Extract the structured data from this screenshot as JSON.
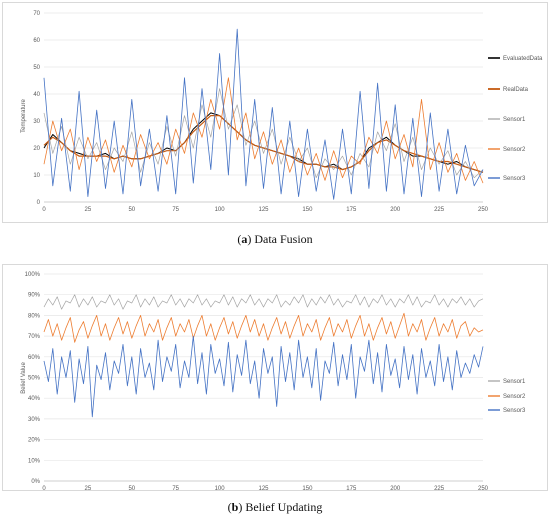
{
  "captions": {
    "a_label": "a",
    "a_text": " Data Fusion",
    "b_label": "b",
    "b_text": " Belief Updating"
  },
  "chart_data": [
    {
      "id": "a",
      "type": "line",
      "ylabel": "Temperature",
      "xlim": [
        0,
        250
      ],
      "ylim": [
        0,
        70
      ],
      "xticks": [
        0,
        25,
        50,
        75,
        100,
        125,
        150,
        175,
        200,
        225,
        250
      ],
      "yticks": [
        0,
        10,
        20,
        30,
        40,
        50,
        60,
        70
      ],
      "xtick_labels": [
        "0",
        "25",
        "50",
        "75",
        "100",
        "125",
        "150",
        "175",
        "200",
        "225",
        "250"
      ],
      "ytick_labels": [
        "0",
        "10",
        "20",
        "30",
        "40",
        "50",
        "60",
        "70"
      ],
      "legend": "right",
      "x": {
        "start": 0,
        "end": 250,
        "step": 5
      },
      "series": [
        {
          "name": "EvaluatedData",
          "color": "#000000",
          "width": 1.0,
          "values": [
            20,
            25,
            22,
            19,
            18,
            17,
            17,
            18,
            16,
            17,
            16,
            16,
            17,
            18,
            20,
            19,
            22,
            27,
            30,
            33,
            32,
            29,
            26,
            23,
            21,
            20,
            19,
            18,
            17,
            16,
            14,
            14,
            13,
            14,
            12,
            13,
            15,
            20,
            22,
            24,
            21,
            19,
            17,
            17,
            16,
            15,
            14,
            15,
            13,
            12,
            11
          ]
        },
        {
          "name": "RealData",
          "color": "#c55a11",
          "width": 1.2,
          "values": [
            21,
            24,
            22,
            19,
            17,
            17,
            17,
            17,
            16,
            17,
            16,
            16,
            17,
            18,
            19,
            19,
            22,
            26,
            29,
            32,
            32,
            29,
            26,
            23,
            21,
            20,
            19,
            18,
            17,
            15,
            14,
            14,
            13,
            13,
            12,
            13,
            15,
            19,
            22,
            23,
            21,
            19,
            18,
            17,
            16,
            15,
            15,
            14,
            13,
            12,
            11
          ]
        },
        {
          "name": "Sensor1",
          "color": "#a6a6a6",
          "width": 0.7,
          "values": [
            33,
            18,
            28,
            14,
            24,
            16,
            22,
            12,
            20,
            15,
            26,
            11,
            22,
            14,
            28,
            17,
            32,
            20,
            36,
            24,
            42,
            27,
            36,
            21,
            30,
            18,
            27,
            14,
            24,
            15,
            20,
            9,
            16,
            12,
            17,
            10,
            18,
            13,
            26,
            19,
            29,
            15,
            24,
            12,
            20,
            14,
            19,
            10,
            15,
            9,
            12
          ]
        },
        {
          "name": "Sensor2",
          "color": "#ed7d31",
          "width": 0.8,
          "values": [
            14,
            30,
            19,
            27,
            12,
            24,
            15,
            23,
            11,
            21,
            13,
            25,
            16,
            22,
            14,
            27,
            18,
            33,
            24,
            38,
            27,
            46,
            23,
            33,
            16,
            26,
            14,
            23,
            11,
            20,
            10,
            18,
            8,
            19,
            9,
            17,
            14,
            24,
            18,
            30,
            16,
            25,
            13,
            38,
            12,
            22,
            11,
            18,
            8,
            15,
            7
          ]
        },
        {
          "name": "Sensor3",
          "color": "#4472c4",
          "width": 0.8,
          "values": [
            46,
            6,
            31,
            4,
            41,
            2,
            34,
            5,
            30,
            3,
            38,
            6,
            27,
            4,
            32,
            3,
            46,
            7,
            42,
            12,
            55,
            10,
            64,
            6,
            38,
            5,
            35,
            3,
            30,
            2,
            27,
            4,
            23,
            1,
            27,
            3,
            41,
            5,
            44,
            4,
            36,
            3,
            31,
            2,
            33,
            4,
            27,
            3,
            21,
            6,
            12
          ]
        }
      ]
    },
    {
      "id": "b",
      "type": "line",
      "ylabel": "Belief Value",
      "xlim": [
        0,
        250
      ],
      "ylim": [
        0,
        1
      ],
      "xticks": [
        0,
        25,
        50,
        75,
        100,
        125,
        150,
        175,
        200,
        225,
        250
      ],
      "yticks": [
        0,
        0.1,
        0.2,
        0.3,
        0.4,
        0.5,
        0.6,
        0.7,
        0.8,
        0.9,
        1.0
      ],
      "xtick_labels": [
        "0",
        "25",
        "50",
        "75",
        "100",
        "125",
        "150",
        "175",
        "200",
        "225",
        "250"
      ],
      "ytick_labels": [
        "0%",
        "10%",
        "20%",
        "30%",
        "40%",
        "50%",
        "60%",
        "70%",
        "80%",
        "90%",
        "100%"
      ],
      "legend": "right",
      "x": {
        "start": 0,
        "end": 250,
        "step": 2.5
      },
      "series": [
        {
          "name": "Sensor1",
          "color": "#a6a6a6",
          "width": 0.7,
          "values": [
            0.84,
            0.88,
            0.85,
            0.89,
            0.83,
            0.87,
            0.86,
            0.9,
            0.84,
            0.88,
            0.85,
            0.89,
            0.84,
            0.87,
            0.86,
            0.9,
            0.85,
            0.88,
            0.83,
            0.87,
            0.86,
            0.9,
            0.84,
            0.88,
            0.85,
            0.89,
            0.84,
            0.87,
            0.86,
            0.9,
            0.85,
            0.88,
            0.84,
            0.88,
            0.86,
            0.9,
            0.85,
            0.88,
            0.84,
            0.87,
            0.86,
            0.9,
            0.85,
            0.89,
            0.84,
            0.88,
            0.86,
            0.9,
            0.85,
            0.88,
            0.84,
            0.88,
            0.86,
            0.9,
            0.84,
            0.87,
            0.85,
            0.89,
            0.86,
            0.9,
            0.84,
            0.88,
            0.85,
            0.89,
            0.86,
            0.9,
            0.85,
            0.88,
            0.84,
            0.87,
            0.86,
            0.9,
            0.85,
            0.89,
            0.84,
            0.88,
            0.86,
            0.9,
            0.85,
            0.88,
            0.84,
            0.88,
            0.86,
            0.9,
            0.85,
            0.89,
            0.84,
            0.87,
            0.86,
            0.9,
            0.85,
            0.88,
            0.84,
            0.88,
            0.86,
            0.89,
            0.85,
            0.88,
            0.84,
            0.87,
            0.88
          ]
        },
        {
          "name": "Sensor2",
          "color": "#ed7d31",
          "width": 0.8,
          "values": [
            0.72,
            0.78,
            0.7,
            0.76,
            0.68,
            0.74,
            0.79,
            0.67,
            0.73,
            0.77,
            0.69,
            0.75,
            0.8,
            0.7,
            0.76,
            0.68,
            0.74,
            0.79,
            0.71,
            0.77,
            0.69,
            0.75,
            0.8,
            0.7,
            0.76,
            0.72,
            0.78,
            0.68,
            0.74,
            0.79,
            0.7,
            0.76,
            0.72,
            0.78,
            0.69,
            0.75,
            0.8,
            0.7,
            0.76,
            0.68,
            0.74,
            0.79,
            0.71,
            0.77,
            0.69,
            0.75,
            0.8,
            0.72,
            0.78,
            0.7,
            0.76,
            0.68,
            0.74,
            0.79,
            0.71,
            0.77,
            0.69,
            0.75,
            0.8,
            0.7,
            0.76,
            0.72,
            0.78,
            0.68,
            0.74,
            0.79,
            0.7,
            0.76,
            0.72,
            0.78,
            0.69,
            0.75,
            0.8,
            0.7,
            0.76,
            0.68,
            0.74,
            0.79,
            0.71,
            0.77,
            0.69,
            0.75,
            0.81,
            0.7,
            0.76,
            0.72,
            0.78,
            0.68,
            0.74,
            0.79,
            0.7,
            0.76,
            0.72,
            0.78,
            0.69,
            0.75,
            0.77,
            0.7,
            0.74,
            0.72,
            0.73
          ]
        },
        {
          "name": "Sensor3",
          "color": "#4472c4",
          "width": 0.8,
          "values": [
            0.58,
            0.48,
            0.64,
            0.42,
            0.6,
            0.5,
            0.63,
            0.38,
            0.59,
            0.47,
            0.65,
            0.31,
            0.56,
            0.49,
            0.62,
            0.44,
            0.58,
            0.52,
            0.66,
            0.46,
            0.6,
            0.42,
            0.64,
            0.5,
            0.57,
            0.44,
            0.68,
            0.48,
            0.6,
            0.53,
            0.66,
            0.45,
            0.58,
            0.5,
            0.7,
            0.47,
            0.62,
            0.42,
            0.66,
            0.52,
            0.59,
            0.46,
            0.67,
            0.43,
            0.61,
            0.51,
            0.68,
            0.47,
            0.58,
            0.4,
            0.64,
            0.52,
            0.6,
            0.36,
            0.65,
            0.48,
            0.62,
            0.44,
            0.68,
            0.5,
            0.6,
            0.45,
            0.64,
            0.39,
            0.58,
            0.52,
            0.67,
            0.46,
            0.61,
            0.49,
            0.66,
            0.4,
            0.6,
            0.53,
            0.68,
            0.47,
            0.62,
            0.43,
            0.66,
            0.51,
            0.59,
            0.45,
            0.65,
            0.49,
            0.61,
            0.42,
            0.64,
            0.5,
            0.58,
            0.46,
            0.66,
            0.48,
            0.6,
            0.44,
            0.63,
            0.5,
            0.57,
            0.52,
            0.61,
            0.55,
            0.65
          ]
        }
      ]
    }
  ]
}
